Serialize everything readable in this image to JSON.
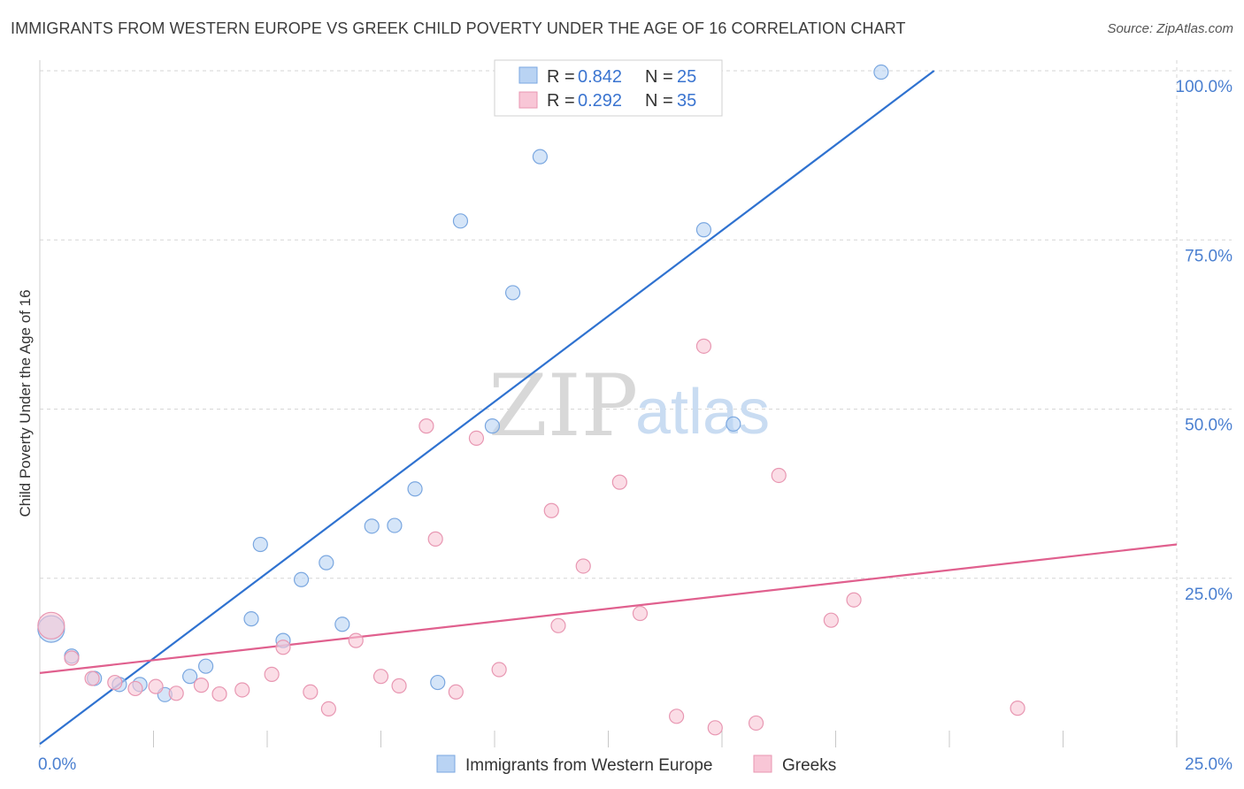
{
  "title": "IMMIGRANTS FROM WESTERN EUROPE VS GREEK CHILD POVERTY UNDER THE AGE OF 16 CORRELATION CHART",
  "source": "Source: ZipAtlas.com",
  "watermark": {
    "zip": "ZIP",
    "atlas": "atlas"
  },
  "colors": {
    "blue_fill": "#b9d3f3",
    "blue_stroke": "#7aa7e0",
    "blue_line": "#2f72d0",
    "pink_fill": "#f8c6d6",
    "pink_stroke": "#e897b2",
    "pink_line": "#e0608e",
    "grid": "#d6d6d6",
    "axis_text": "#4a7fd0"
  },
  "stats_legend": {
    "r_label": "R =",
    "n_label": "N =",
    "rows": [
      {
        "series": "blue",
        "r": "0.842",
        "n": "25"
      },
      {
        "series": "pink",
        "r": "0.292",
        "n": "35"
      }
    ]
  },
  "chart_data": {
    "type": "scatter",
    "title": "IMMIGRANTS FROM WESTERN EUROPE VS GREEK CHILD POVERTY UNDER THE AGE OF 16 CORRELATION CHART",
    "xlabel": "",
    "ylabel": "Child Poverty Under the Age of 16",
    "xlim": [
      0,
      25
    ],
    "ylim": [
      0,
      100
    ],
    "x_tick_labels": [
      {
        "value": 0,
        "label": "0.0%"
      },
      {
        "value": 25,
        "label": "25.0%"
      }
    ],
    "y_tick_labels": [
      {
        "value": 25,
        "label": "25.0%"
      },
      {
        "value": 50,
        "label": "50.0%"
      },
      {
        "value": 75,
        "label": "75.0%"
      },
      {
        "value": 100,
        "label": "100.0%"
      }
    ],
    "series": [
      {
        "name": "Immigrants from Western Europe",
        "color": "blue",
        "r": 0.842,
        "n": 25,
        "trend": {
          "x": [
            0,
            25
          ],
          "y": [
            0.5,
            127
          ]
        },
        "points": [
          {
            "x": 0.25,
            "y": 17.5,
            "big": true
          },
          {
            "x": 0.7,
            "y": 13.5
          },
          {
            "x": 1.2,
            "y": 10.2
          },
          {
            "x": 1.75,
            "y": 9.3
          },
          {
            "x": 2.2,
            "y": 9.3
          },
          {
            "x": 2.75,
            "y": 7.8
          },
          {
            "x": 3.3,
            "y": 10.5
          },
          {
            "x": 3.65,
            "y": 12.0
          },
          {
            "x": 4.65,
            "y": 19.0
          },
          {
            "x": 4.85,
            "y": 30.0
          },
          {
            "x": 5.35,
            "y": 15.8
          },
          {
            "x": 5.75,
            "y": 24.8
          },
          {
            "x": 6.3,
            "y": 27.3
          },
          {
            "x": 6.65,
            "y": 18.2
          },
          {
            "x": 7.3,
            "y": 32.7
          },
          {
            "x": 7.8,
            "y": 32.8
          },
          {
            "x": 8.25,
            "y": 38.2
          },
          {
            "x": 8.75,
            "y": 9.6
          },
          {
            "x": 9.25,
            "y": 77.8
          },
          {
            "x": 9.95,
            "y": 47.5
          },
          {
            "x": 10.4,
            "y": 67.2
          },
          {
            "x": 11.0,
            "y": 87.3
          },
          {
            "x": 14.6,
            "y": 76.5
          },
          {
            "x": 15.25,
            "y": 47.8
          },
          {
            "x": 18.5,
            "y": 99.8
          }
        ]
      },
      {
        "name": "Greeks",
        "color": "pink",
        "r": 0.292,
        "n": 35,
        "trend": {
          "x": [
            0,
            25
          ],
          "y": [
            11.0,
            30.0
          ]
        },
        "points": [
          {
            "x": 0.25,
            "y": 18.0,
            "big": true
          },
          {
            "x": 0.7,
            "y": 13.2
          },
          {
            "x": 1.15,
            "y": 10.2
          },
          {
            "x": 1.65,
            "y": 9.6
          },
          {
            "x": 2.1,
            "y": 8.7
          },
          {
            "x": 2.55,
            "y": 9.0
          },
          {
            "x": 3.0,
            "y": 8.0
          },
          {
            "x": 3.55,
            "y": 9.2
          },
          {
            "x": 3.95,
            "y": 7.9
          },
          {
            "x": 4.45,
            "y": 8.5
          },
          {
            "x": 5.1,
            "y": 10.8
          },
          {
            "x": 5.35,
            "y": 14.8
          },
          {
            "x": 5.95,
            "y": 8.2
          },
          {
            "x": 6.35,
            "y": 5.7
          },
          {
            "x": 6.95,
            "y": 15.8
          },
          {
            "x": 7.5,
            "y": 10.5
          },
          {
            "x": 7.9,
            "y": 9.1
          },
          {
            "x": 8.5,
            "y": 47.5
          },
          {
            "x": 8.7,
            "y": 30.8
          },
          {
            "x": 9.15,
            "y": 8.2
          },
          {
            "x": 9.6,
            "y": 45.7
          },
          {
            "x": 10.1,
            "y": 11.5
          },
          {
            "x": 11.25,
            "y": 35.0
          },
          {
            "x": 11.4,
            "y": 18.0
          },
          {
            "x": 11.95,
            "y": 26.8
          },
          {
            "x": 12.75,
            "y": 39.2
          },
          {
            "x": 13.2,
            "y": 19.8
          },
          {
            "x": 14.0,
            "y": 4.6
          },
          {
            "x": 14.6,
            "y": 59.3
          },
          {
            "x": 14.85,
            "y": 2.9
          },
          {
            "x": 15.75,
            "y": 3.6
          },
          {
            "x": 16.25,
            "y": 40.2
          },
          {
            "x": 17.4,
            "y": 18.8
          },
          {
            "x": 17.9,
            "y": 21.8
          },
          {
            "x": 21.5,
            "y": 5.8
          }
        ]
      }
    ],
    "legend": {
      "position": "bottom-center"
    }
  }
}
